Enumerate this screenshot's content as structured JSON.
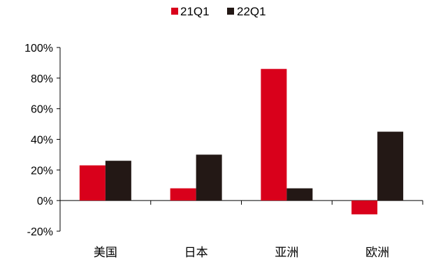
{
  "chart_data": {
    "type": "bar",
    "categories": [
      "美国",
      "日本",
      "亚洲",
      "欧洲"
    ],
    "series": [
      {
        "name": "21Q1",
        "values": [
          23,
          8,
          86,
          -9
        ],
        "color": "#d9001b"
      },
      {
        "name": "22Q1",
        "values": [
          26,
          30,
          8,
          45
        ],
        "color": "#231815"
      }
    ],
    "y_ticks": [
      "100%",
      "80%",
      "60%",
      "40%",
      "20%",
      "0%",
      "-20%"
    ],
    "ylim": [
      -20,
      100
    ],
    "y_step": 20,
    "legend_position": "top-center",
    "grid": false
  }
}
